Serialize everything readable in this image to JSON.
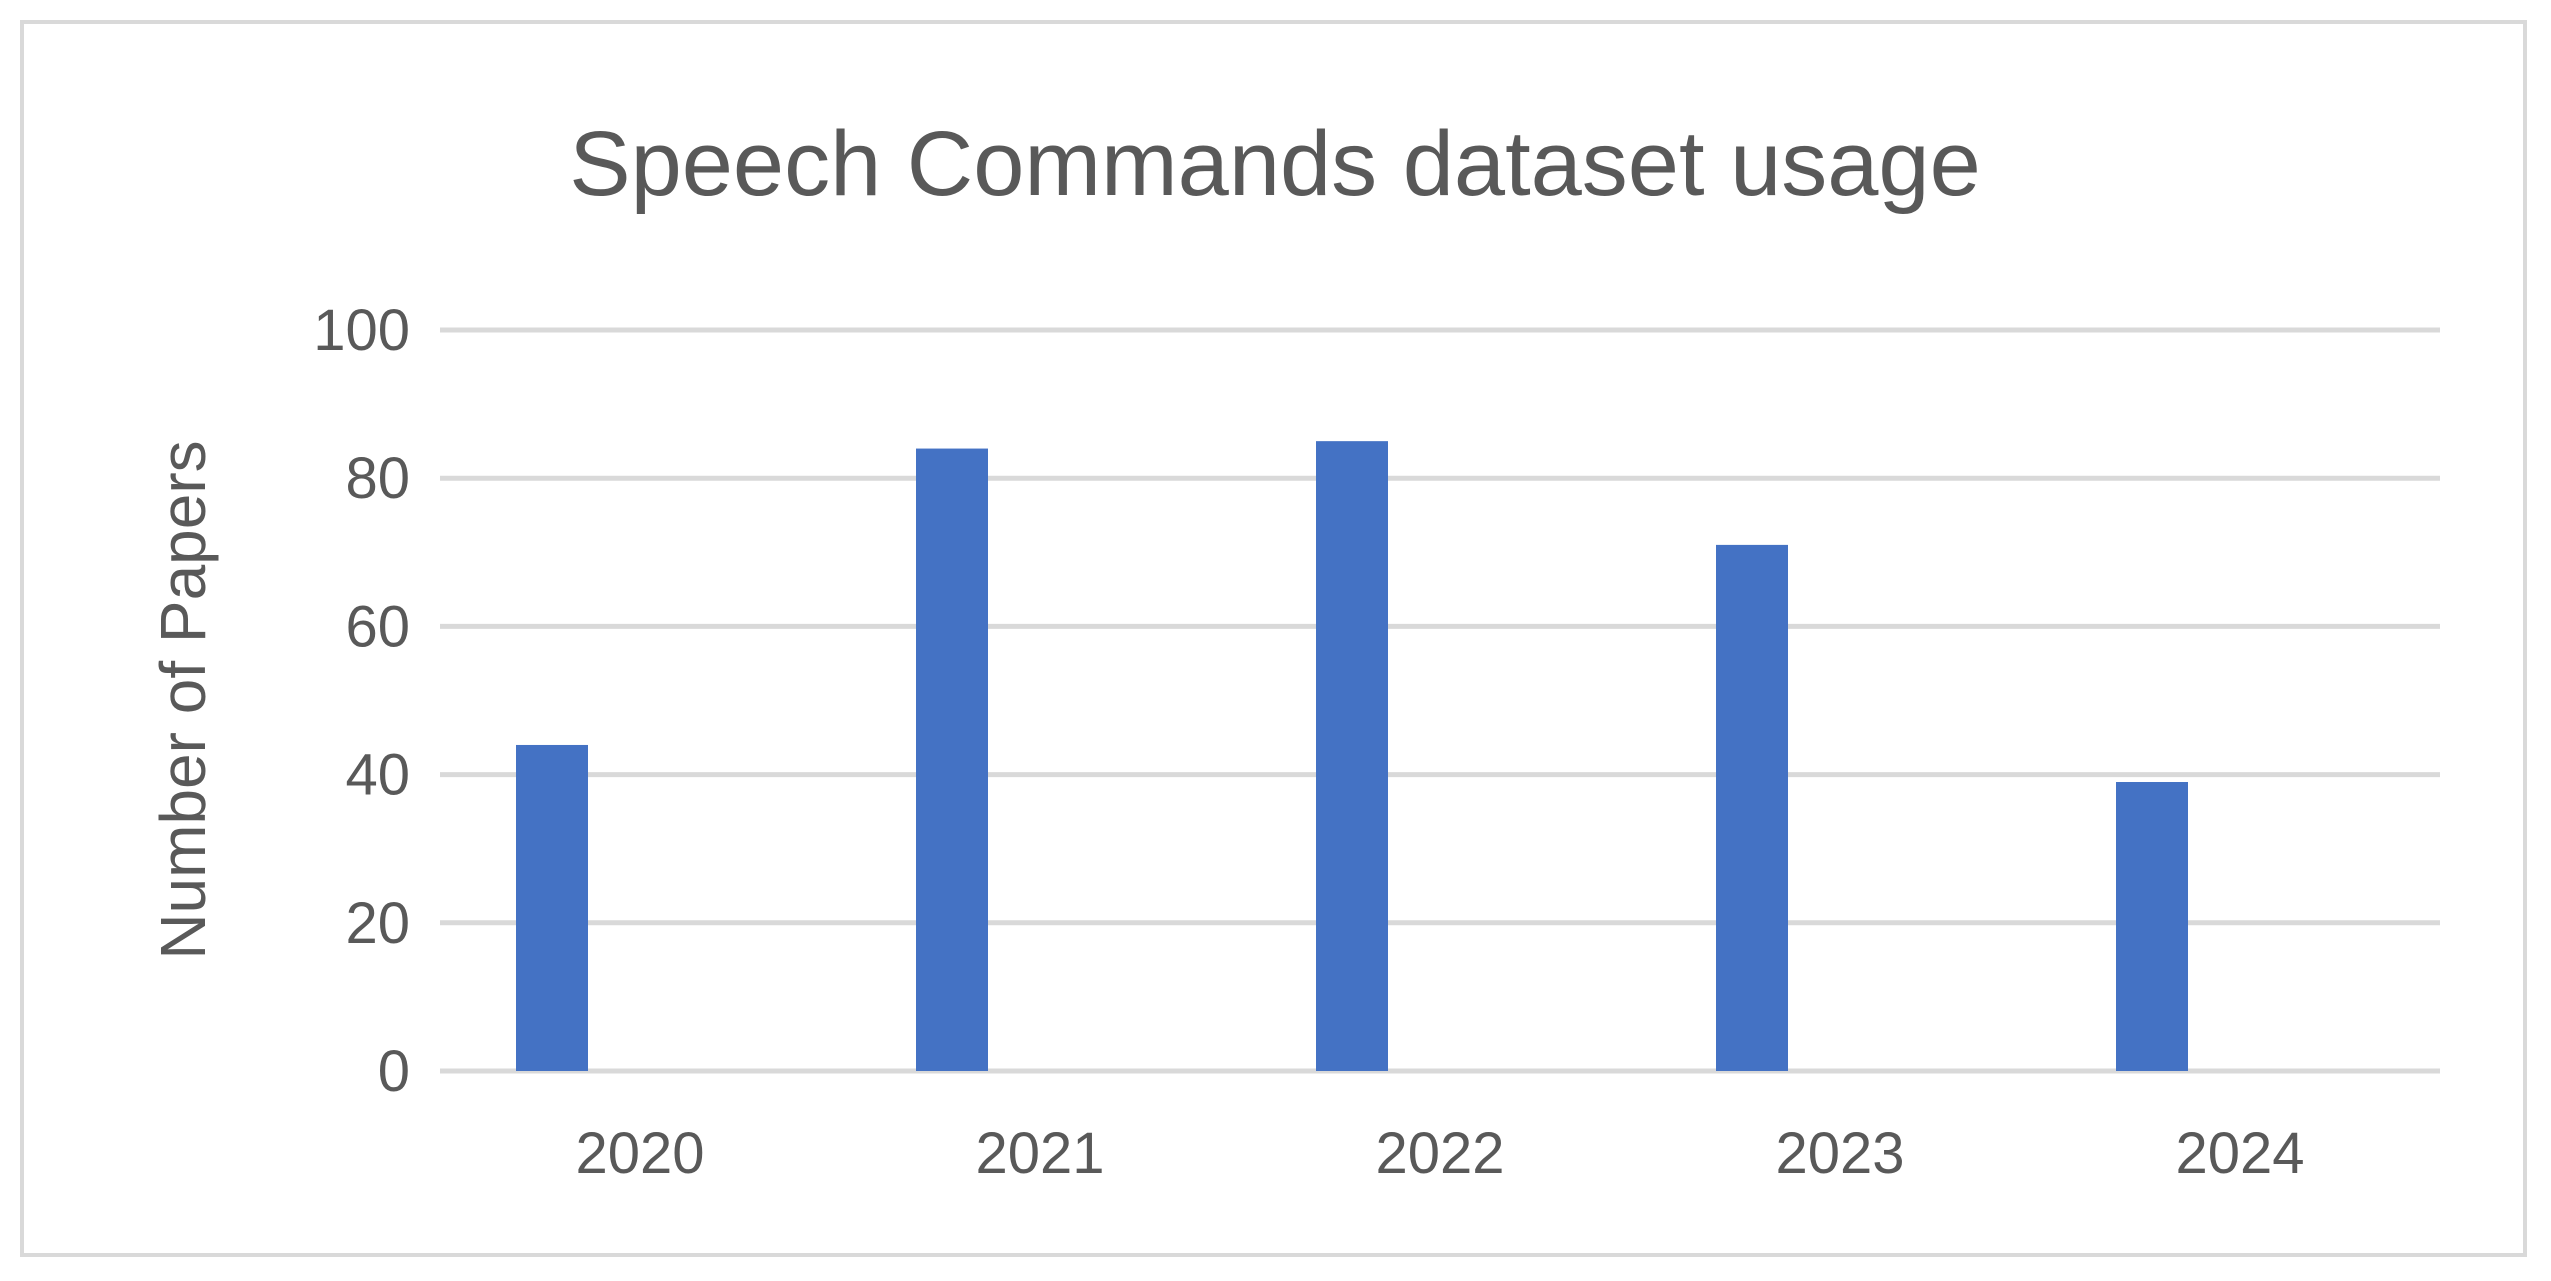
{
  "chart_data": {
    "type": "bar",
    "title": "Speech Commands dataset usage",
    "xlabel": "",
    "ylabel": "Number of Papers",
    "categories": [
      "2020",
      "2021",
      "2022",
      "2023",
      "2024"
    ],
    "values": [
      44,
      84,
      85,
      71,
      39
    ],
    "ylim": [
      0,
      100
    ],
    "yticks": [
      "0",
      "20",
      "40",
      "60",
      "80",
      "100"
    ],
    "ytick_values": [
      0,
      20,
      40,
      60,
      80,
      100
    ],
    "grid": true,
    "legend": "none",
    "colors": {
      "bar": "#4472c4",
      "grid": "#d9d9d9",
      "text": "#595959",
      "border": "#d9d9d9"
    }
  }
}
